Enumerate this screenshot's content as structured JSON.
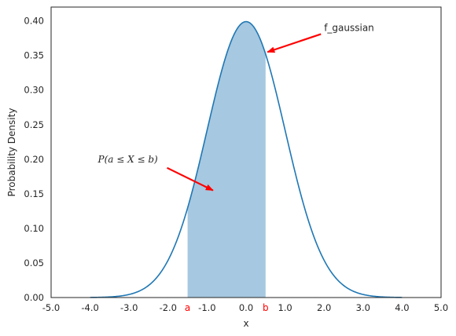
{
  "chart_data": {
    "type": "area",
    "title": "",
    "xlabel": "x",
    "ylabel": "Probability Density",
    "xlim": [
      -5.0,
      5.0
    ],
    "ylim": [
      0.0,
      0.42
    ],
    "grid": false,
    "series": [
      {
        "name": "f_gaussian",
        "kind": "line",
        "distribution": "standard normal",
        "mean": 0.0,
        "std": 1.0,
        "x_range": [
          -4.0,
          4.0
        ],
        "color": "#1f77b4"
      }
    ],
    "shaded_region": {
      "x_from": -1.5,
      "x_to": 0.5,
      "color": "#a6c8e0"
    },
    "x_ticks": [
      {
        "value": -5.0,
        "label": "-5.0"
      },
      {
        "value": -4.0,
        "label": "-4.0"
      },
      {
        "value": -3.0,
        "label": "-3.0"
      },
      {
        "value": -2.0,
        "label": "-2.0"
      },
      {
        "value": -1.0,
        "label": "-1.0"
      },
      {
        "value": 0.0,
        "label": "0.0"
      },
      {
        "value": 1.0,
        "label": "1.0"
      },
      {
        "value": 2.0,
        "label": "2.0"
      },
      {
        "value": 3.0,
        "label": "3.0"
      },
      {
        "value": 4.0,
        "label": "4.0"
      },
      {
        "value": 5.0,
        "label": "5.0"
      }
    ],
    "extra_x_ticks": [
      {
        "value": -1.5,
        "label": "a",
        "color": "#ff0000"
      },
      {
        "value": 0.5,
        "label": "b",
        "color": "#ff0000"
      }
    ],
    "y_ticks": [
      {
        "value": 0.0,
        "label": "0.00"
      },
      {
        "value": 0.05,
        "label": "0.05"
      },
      {
        "value": 0.1,
        "label": "0.10"
      },
      {
        "value": 0.15,
        "label": "0.15"
      },
      {
        "value": 0.2,
        "label": "0.20"
      },
      {
        "value": 0.25,
        "label": "0.25"
      },
      {
        "value": 0.3,
        "label": "0.30"
      },
      {
        "value": 0.35,
        "label": "0.35"
      },
      {
        "value": 0.4,
        "label": "0.40"
      }
    ],
    "annotations": [
      {
        "id": "curve-annotation",
        "text": "f_gaussian",
        "text_x": 2.0,
        "text_y": 0.39,
        "arrow_to_x": 0.55,
        "arrow_to_y": 0.355,
        "arrow_color": "#ff0000"
      },
      {
        "id": "area-annotation",
        "text": "P(a ≤ X ≤ b)",
        "text_x": -3.8,
        "text_y": 0.2,
        "arrow_to_x": -0.85,
        "arrow_to_y": 0.155,
        "arrow_color": "#ff0000"
      }
    ]
  }
}
